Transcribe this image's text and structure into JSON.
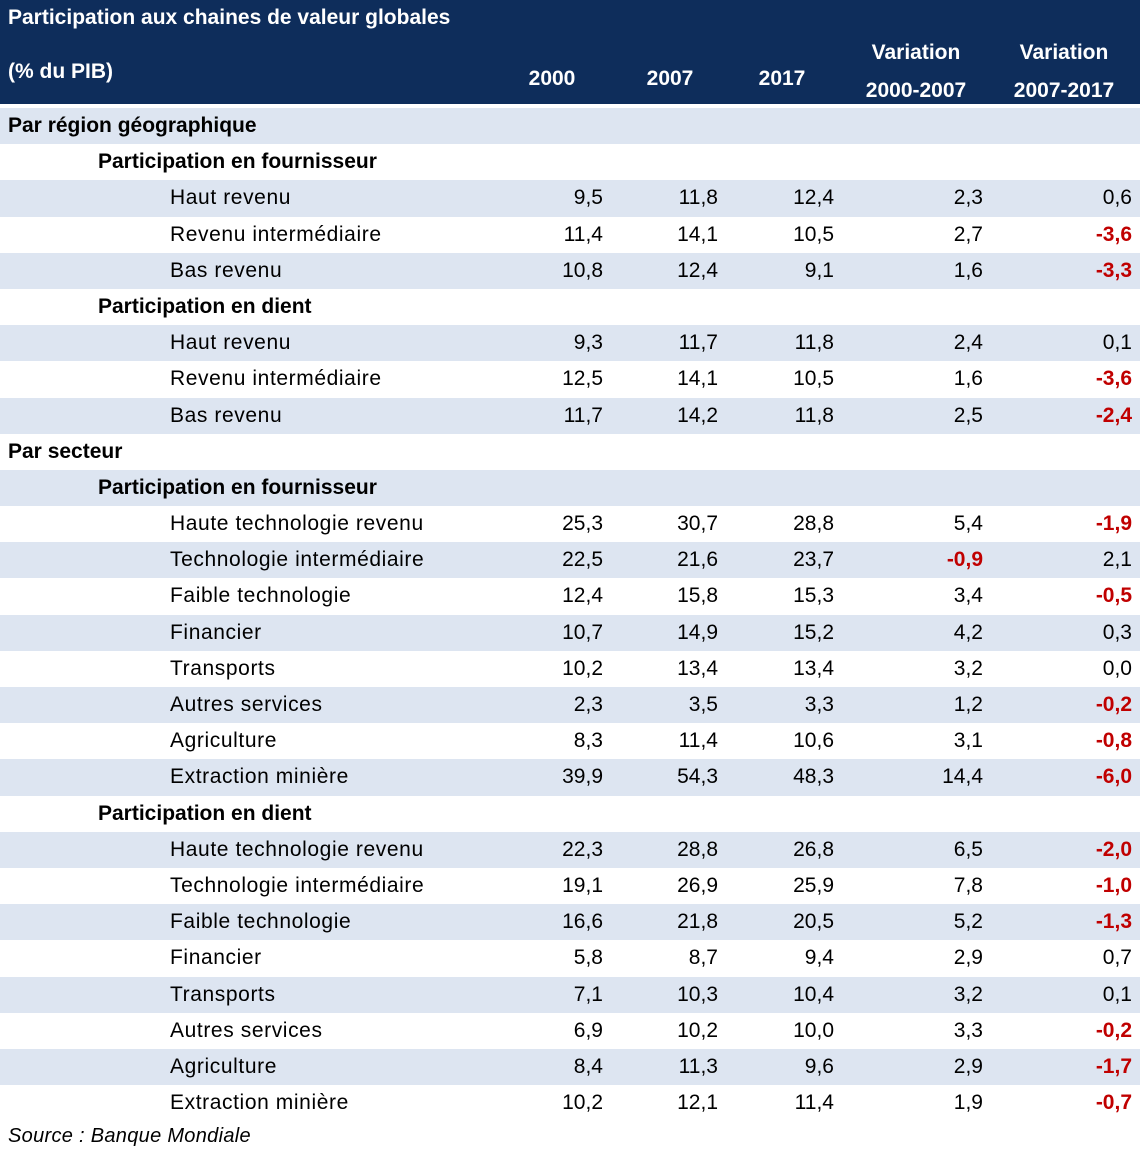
{
  "header": {
    "title": "Participation aux chaines de valeur globales",
    "unit": "(% du PIB)",
    "columns": [
      {
        "line1": "2000",
        "line2": ""
      },
      {
        "line1": "2007",
        "line2": ""
      },
      {
        "line1": "2017",
        "line2": ""
      },
      {
        "line1": "Variation",
        "line2": "2000-2007"
      },
      {
        "line1": "Variation",
        "line2": "2007-2017"
      }
    ]
  },
  "chart_data": {
    "type": "table",
    "title": "Participation aux chaines de valeur globales",
    "unit": "(% du PIB)",
    "columns": [
      "2000",
      "2007",
      "2017",
      "Variation 2000-2007",
      "Variation 2007-2017"
    ],
    "rows": [
      {
        "level": 0,
        "label": "Par région géographique",
        "values": []
      },
      {
        "level": 1,
        "label": "Participation en fournisseur",
        "values": []
      },
      {
        "level": 2,
        "label": "Haut revenu",
        "values": [
          "9,5",
          "11,8",
          "12,4",
          "2,3",
          "0,6"
        ]
      },
      {
        "level": 2,
        "label": "Revenu intermédiaire",
        "values": [
          "11,4",
          "14,1",
          "10,5",
          "2,7",
          "-3,6"
        ]
      },
      {
        "level": 2,
        "label": "Bas revenu",
        "values": [
          "10,8",
          "12,4",
          "9,1",
          "1,6",
          "-3,3"
        ]
      },
      {
        "level": 1,
        "label": "Participation en dient",
        "values": []
      },
      {
        "level": 2,
        "label": "Haut revenu",
        "values": [
          "9,3",
          "11,7",
          "11,8",
          "2,4",
          "0,1"
        ]
      },
      {
        "level": 2,
        "label": "Revenu intermédiaire",
        "values": [
          "12,5",
          "14,1",
          "10,5",
          "1,6",
          "-3,6"
        ]
      },
      {
        "level": 2,
        "label": "Bas revenu",
        "values": [
          "11,7",
          "14,2",
          "11,8",
          "2,5",
          "-2,4"
        ]
      },
      {
        "level": 0,
        "label": "Par secteur",
        "values": []
      },
      {
        "level": 1,
        "label": "Participation en fournisseur",
        "values": []
      },
      {
        "level": 2,
        "label": "Haute technologie revenu",
        "values": [
          "25,3",
          "30,7",
          "28,8",
          "5,4",
          "-1,9"
        ]
      },
      {
        "level": 2,
        "label": "Technologie intermédiaire",
        "values": [
          "22,5",
          "21,6",
          "23,7",
          "-0,9",
          "2,1"
        ]
      },
      {
        "level": 2,
        "label": "Faible technologie",
        "values": [
          "12,4",
          "15,8",
          "15,3",
          "3,4",
          "-0,5"
        ]
      },
      {
        "level": 2,
        "label": "Financier",
        "values": [
          "10,7",
          "14,9",
          "15,2",
          "4,2",
          "0,3"
        ]
      },
      {
        "level": 2,
        "label": "Transports",
        "values": [
          "10,2",
          "13,4",
          "13,4",
          "3,2",
          "0,0"
        ]
      },
      {
        "level": 2,
        "label": "Autres services",
        "values": [
          "2,3",
          "3,5",
          "3,3",
          "1,2",
          "-0,2"
        ]
      },
      {
        "level": 2,
        "label": "Agriculture",
        "values": [
          "8,3",
          "11,4",
          "10,6",
          "3,1",
          "-0,8"
        ]
      },
      {
        "level": 2,
        "label": "Extraction minière",
        "values": [
          "39,9",
          "54,3",
          "48,3",
          "14,4",
          "-6,0"
        ]
      },
      {
        "level": 1,
        "label": "Participation en dient",
        "values": []
      },
      {
        "level": 2,
        "label": "Haute technologie revenu",
        "values": [
          "22,3",
          "28,8",
          "26,8",
          "6,5",
          "-2,0"
        ]
      },
      {
        "level": 2,
        "label": "Technologie intermédiaire",
        "values": [
          "19,1",
          "26,9",
          "25,9",
          "7,8",
          "-1,0"
        ]
      },
      {
        "level": 2,
        "label": "Faible technologie",
        "values": [
          "16,6",
          "21,8",
          "20,5",
          "5,2",
          "-1,3"
        ]
      },
      {
        "level": 2,
        "label": "Financier",
        "values": [
          "5,8",
          "8,7",
          "9,4",
          "2,9",
          "0,7"
        ]
      },
      {
        "level": 2,
        "label": "Transports",
        "values": [
          "7,1",
          "10,3",
          "10,4",
          "3,2",
          "0,1"
        ]
      },
      {
        "level": 2,
        "label": "Autres services",
        "values": [
          "6,9",
          "10,2",
          "10,0",
          "3,3",
          "-0,2"
        ]
      },
      {
        "level": 2,
        "label": "Agriculture",
        "values": [
          "8,4",
          "11,3",
          "9,6",
          "2,9",
          "-1,7"
        ]
      },
      {
        "level": 2,
        "label": "Extraction minière",
        "values": [
          "10,2",
          "12,1",
          "11,4",
          "1,9",
          "-0,7"
        ]
      }
    ]
  },
  "source": "Source : Banque Mondiale",
  "colors": {
    "header_bg": "#0e2d5b",
    "header_text": "#ffffff",
    "row_shade": "#dde5f1",
    "negative": "#c00000"
  }
}
